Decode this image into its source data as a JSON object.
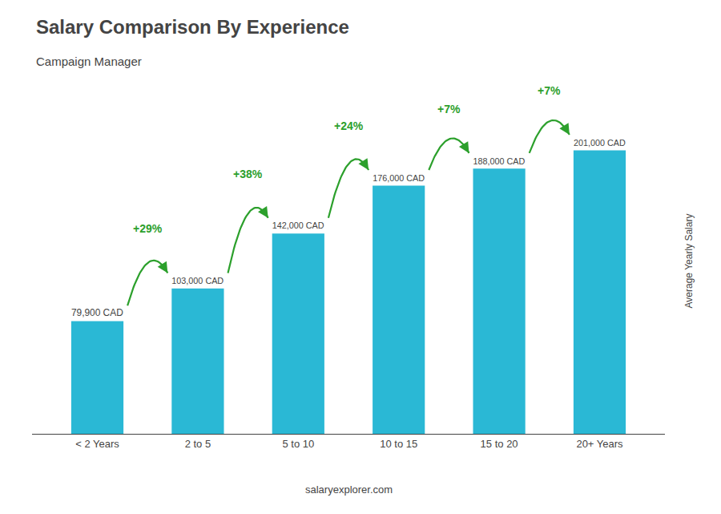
{
  "chart_data": {
    "type": "bar",
    "title": "Salary Comparison By Experience",
    "subtitle": "Campaign Manager",
    "ylabel": "Average Yearly Salary",
    "categories": [
      "< 2 Years",
      "2 to 5",
      "5 to 10",
      "10 to 15",
      "15 to 20",
      "20+ Years"
    ],
    "values": [
      79900,
      103000,
      142000,
      176000,
      188000,
      201000
    ],
    "value_labels": [
      "79,900 CAD",
      "103,000 CAD",
      "142,000 CAD",
      "176,000 CAD",
      "188,000 CAD",
      "201,000 CAD"
    ],
    "data_labels": true,
    "color": "#2ab8d5",
    "ylim": [
      0,
      245000
    ],
    "tick_labels": "x",
    "grid": false,
    "annotations": [
      {
        "text": "+29%",
        "from": "< 2 Years",
        "to": "2 to 5",
        "color": "#2ca02c"
      },
      {
        "text": "+38%",
        "from": "2 to 5",
        "to": "5 to 10",
        "color": "#2ca02c"
      },
      {
        "text": "+24%",
        "from": "5 to 10",
        "to": "10 to 15",
        "color": "#2ca02c"
      },
      {
        "text": "+7%",
        "from": "10 to 15",
        "to": "15 to 20",
        "color": "#2ca02c"
      },
      {
        "text": "+7%",
        "from": "15 to 20",
        "to": "20+ Years",
        "color": "#2ca02c"
      },
      {
        "text": "salaryexplorer.com"
      }
    ]
  }
}
